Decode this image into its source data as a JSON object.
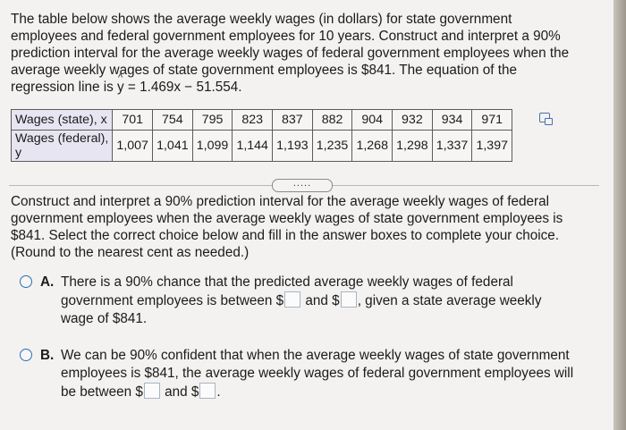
{
  "intro": {
    "line1": "The table below shows the average weekly wages (in dollars) for state government",
    "line2": "employees and federal government employees for 10 years. Construct and interpret a 90%",
    "line3": "prediction interval for the average weekly wages of federal government employees when the",
    "line4": "average weekly wages of state government employees is $841. The equation of the",
    "line5_prefix": "regression line is ",
    "y_symbol": "y",
    "line5_equation": " = 1.469x − 51.554."
  },
  "table": {
    "row1_label": "Wages (state), x",
    "row2_label": "Wages (federal),",
    "row2_label_cont": "y",
    "state": [
      "701",
      "754",
      "795",
      "823",
      "837",
      "882",
      "904",
      "932",
      "934",
      "971"
    ],
    "federal": [
      "1,007",
      "1,041",
      "1,099",
      "1,144",
      "1,193",
      "1,235",
      "1,268",
      "1,298",
      "1,337",
      "1,397"
    ]
  },
  "more_button_label": ".....",
  "question": {
    "line1": "Construct and interpret a 90% prediction interval for the average weekly wages of federal",
    "line2": "government employees when the average weekly wages of state government employees is",
    "line3": "$841. Select the correct choice below and fill in the answer boxes to complete your choice.",
    "line4": "(Round to the nearest cent as needed.)"
  },
  "choiceA": {
    "letter": "A.",
    "l1": "There is a 90% chance that the predicted average weekly wages of federal",
    "l2_a": "government employees is between $",
    "l2_b": " and $",
    "l2_c": ", given a state average weekly",
    "l3": "wage of $841."
  },
  "choiceB": {
    "letter": "B.",
    "l1": "We can be 90% confident that when the average weekly wages of state government",
    "l2": "employees is $841, the average weekly wages of federal government employees will",
    "l3_a": "be between $",
    "l3_b": " and $",
    "l3_c": "."
  }
}
